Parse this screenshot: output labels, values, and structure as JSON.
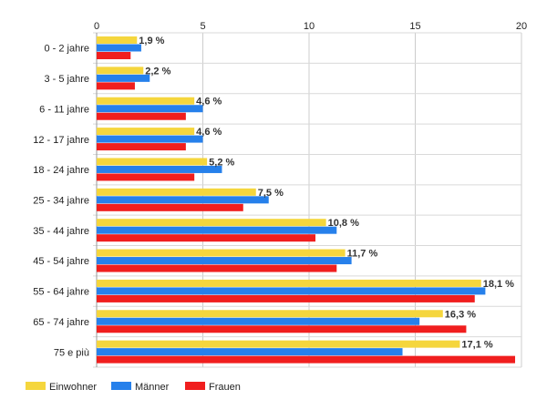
{
  "chart_data": {
    "type": "bar",
    "orientation": "horizontal",
    "categories": [
      "0 - 2 jahre",
      "3 - 5 jahre",
      "6 - 11 jahre",
      "12 - 17 jahre",
      "18 - 24 jahre",
      "25 - 34 jahre",
      "35 - 44 jahre",
      "45 - 54 jahre",
      "55 - 64 jahre",
      "65 - 74 jahre",
      "75 e più"
    ],
    "series": [
      {
        "name": "Einwohner",
        "color": "#f5d63d",
        "values": [
          1.9,
          2.2,
          4.6,
          4.6,
          5.2,
          7.5,
          10.8,
          11.7,
          18.1,
          16.3,
          17.1
        ]
      },
      {
        "name": "Männer",
        "color": "#2680eb",
        "values": [
          2.1,
          2.5,
          5.0,
          5.0,
          5.9,
          8.1,
          11.3,
          12.0,
          18.3,
          15.2,
          14.4
        ]
      },
      {
        "name": "Frauen",
        "color": "#f01e1e",
        "values": [
          1.6,
          1.8,
          4.2,
          4.2,
          4.6,
          6.9,
          10.3,
          11.3,
          17.8,
          17.4,
          19.7
        ]
      }
    ],
    "data_labels": [
      "1,9 %",
      "2,2 %",
      "4,6 %",
      "4,6 %",
      "5,2 %",
      "7,5 %",
      "10,8 %",
      "11,7 %",
      "18,1 %",
      "16,3 %",
      "17,1 %"
    ],
    "xlim": [
      0,
      20
    ],
    "x_ticks": [
      "0",
      "5",
      "10",
      "15",
      "20"
    ],
    "x_tick_values": [
      0,
      5,
      10,
      15,
      20
    ],
    "grid": true,
    "legend_position": "bottom-left"
  }
}
